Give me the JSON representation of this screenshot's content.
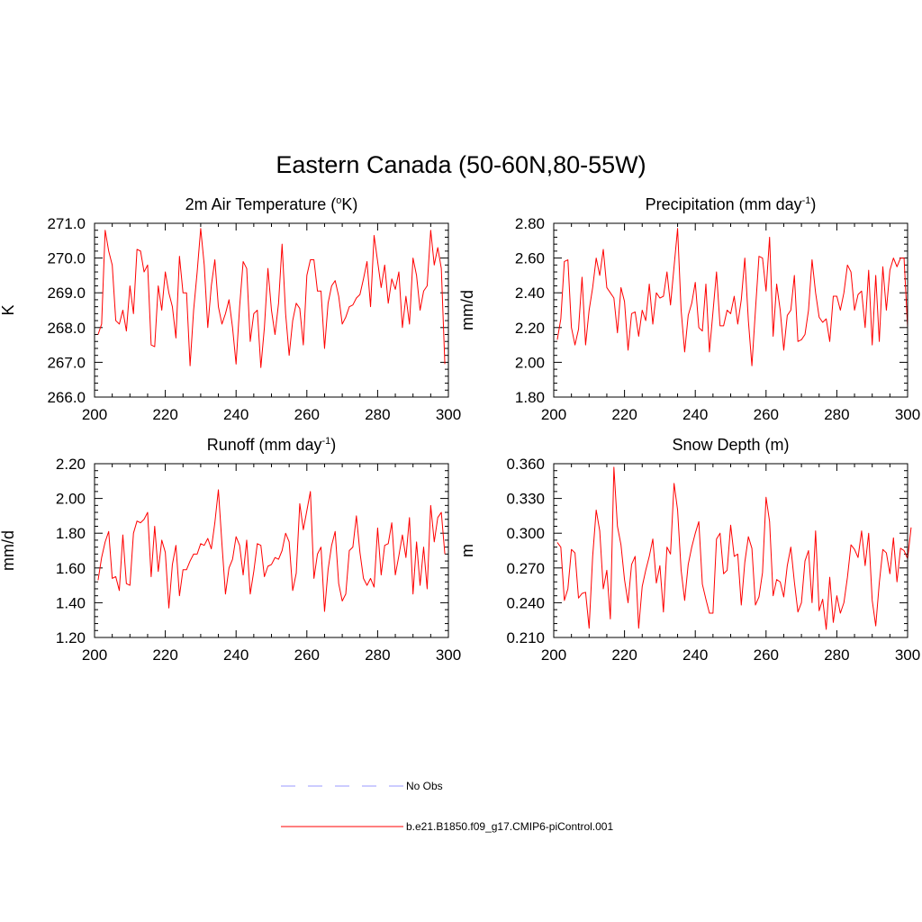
{
  "title": "Eastern Canada (50-60N,80-55W)",
  "legend": {
    "obs_label": "No Obs",
    "obs_color": "#9999ff",
    "model_label": "b.e21.B1850.f09_g17.CMIP6-piControl.001",
    "model_color": "#ff0000"
  },
  "chart_data": [
    {
      "type": "line",
      "title_main": "2m Air Temperature (",
      "title_sup": "o",
      "title_end": "K)",
      "ylabel": "K",
      "xlim": [
        200,
        300
      ],
      "ylim": [
        266.0,
        271.0
      ],
      "xticks": [
        "200",
        "220",
        "240",
        "260",
        "280",
        "300"
      ],
      "yticks": [
        "266.0",
        "267.0",
        "268.0",
        "269.0",
        "270.0",
        "271.0"
      ],
      "x_start": 201,
      "series": [
        {
          "name": "b.e21.B1850.f09_g17.CMIP6-piControl.001",
          "color": "#ff0000",
          "values": [
            267.8,
            268.1,
            270.8,
            270.2,
            269.8,
            268.2,
            268.1,
            268.5,
            267.9,
            269.2,
            268.4,
            270.25,
            270.2,
            269.6,
            269.8,
            267.5,
            267.45,
            269.2,
            268.5,
            269.6,
            269.0,
            268.6,
            267.7,
            270.05,
            269.0,
            269.0,
            266.9,
            268.5,
            269.6,
            270.85,
            269.8,
            268.0,
            269.2,
            269.95,
            268.6,
            268.1,
            268.4,
            268.8,
            268.0,
            266.95,
            268.6,
            269.9,
            269.7,
            267.6,
            268.4,
            268.5,
            266.85,
            268.0,
            269.7,
            268.5,
            267.8,
            268.7,
            270.4,
            268.4,
            267.2,
            268.2,
            268.7,
            268.55,
            267.5,
            269.5,
            269.95,
            269.95,
            269.05,
            269.05,
            267.4,
            268.7,
            269.2,
            269.35,
            268.9,
            268.1,
            268.3,
            268.6,
            268.65,
            268.85,
            268.95,
            269.4,
            269.9,
            268.6,
            270.65,
            269.9,
            269.15,
            269.8,
            268.7,
            269.4,
            269.1,
            269.6,
            268.0,
            268.9,
            268.1,
            270.0,
            269.5,
            268.5,
            269.05,
            269.2,
            270.8,
            269.8,
            270.3,
            269.7,
            266.95
          ]
        }
      ]
    },
    {
      "type": "line",
      "title_main": "Precipitation (mm day",
      "title_sup": "-1",
      "title_end": ")",
      "ylabel": "mm/d",
      "xlim": [
        200,
        300
      ],
      "ylim": [
        1.8,
        2.8
      ],
      "xticks": [
        "200",
        "220",
        "240",
        "260",
        "280",
        "300"
      ],
      "yticks": [
        "1.80",
        "2.00",
        "2.20",
        "2.40",
        "2.60",
        "2.80"
      ],
      "x_start": 201,
      "series": [
        {
          "name": "b.e21.B1850.f09_g17.CMIP6-piControl.001",
          "color": "#ff0000",
          "values": [
            2.13,
            2.25,
            2.58,
            2.59,
            2.2,
            2.1,
            2.19,
            2.49,
            2.1,
            2.3,
            2.43,
            2.6,
            2.5,
            2.65,
            2.43,
            2.4,
            2.37,
            2.17,
            2.43,
            2.35,
            2.07,
            2.28,
            2.29,
            2.15,
            2.3,
            2.24,
            2.45,
            2.22,
            2.4,
            2.37,
            2.38,
            2.52,
            2.33,
            2.55,
            2.77,
            2.3,
            2.06,
            2.27,
            2.34,
            2.46,
            2.2,
            2.18,
            2.45,
            2.06,
            2.29,
            2.52,
            2.21,
            2.21,
            2.3,
            2.28,
            2.38,
            2.22,
            2.36,
            2.6,
            2.24,
            1.98,
            2.3,
            2.61,
            2.6,
            2.41,
            2.72,
            2.15,
            2.45,
            2.3,
            2.07,
            2.27,
            2.3,
            2.5,
            2.12,
            2.13,
            2.16,
            2.3,
            2.59,
            2.4,
            2.26,
            2.23,
            2.25,
            2.12,
            2.38,
            2.38,
            2.3,
            2.4,
            2.56,
            2.52,
            2.3,
            2.39,
            2.41,
            2.2,
            2.53,
            2.1,
            2.5,
            2.12,
            2.55,
            2.3,
            2.53,
            2.6,
            2.55,
            2.6,
            2.6,
            2.2
          ]
        }
      ]
    },
    {
      "type": "line",
      "title_main": "Runoff (mm day",
      "title_sup": "-1",
      "title_end": ")",
      "ylabel": "mm/d",
      "xlim": [
        200,
        300
      ],
      "ylim": [
        1.2,
        2.2
      ],
      "xticks": [
        "200",
        "220",
        "240",
        "260",
        "280",
        "300"
      ],
      "yticks": [
        "1.20",
        "1.40",
        "1.60",
        "1.80",
        "2.00",
        "2.20"
      ],
      "x_start": 201,
      "series": [
        {
          "name": "b.e21.B1850.f09_g17.CMIP6-piControl.001",
          "color": "#ff0000",
          "values": [
            1.53,
            1.66,
            1.75,
            1.81,
            1.54,
            1.55,
            1.47,
            1.79,
            1.51,
            1.5,
            1.8,
            1.87,
            1.86,
            1.88,
            1.92,
            1.55,
            1.84,
            1.58,
            1.76,
            1.69,
            1.37,
            1.62,
            1.73,
            1.44,
            1.59,
            1.59,
            1.64,
            1.68,
            1.68,
            1.74,
            1.73,
            1.77,
            1.71,
            1.86,
            2.05,
            1.74,
            1.45,
            1.6,
            1.65,
            1.78,
            1.73,
            1.56,
            1.76,
            1.45,
            1.58,
            1.74,
            1.73,
            1.55,
            1.61,
            1.62,
            1.66,
            1.65,
            1.7,
            1.8,
            1.75,
            1.47,
            1.57,
            1.97,
            1.82,
            1.93,
            2.04,
            1.54,
            1.68,
            1.72,
            1.35,
            1.59,
            1.73,
            1.81,
            1.51,
            1.41,
            1.45,
            1.7,
            1.72,
            1.9,
            1.69,
            1.54,
            1.5,
            1.54,
            1.49,
            1.83,
            1.56,
            1.73,
            1.74,
            1.86,
            1.56,
            1.67,
            1.79,
            1.66,
            1.89,
            1.45,
            1.75,
            1.5,
            1.72,
            1.48,
            1.96,
            1.75,
            1.89,
            1.92,
            1.68
          ]
        }
      ]
    },
    {
      "type": "line",
      "title_main": "Snow Depth (m)",
      "title_sup": "",
      "title_end": "",
      "ylabel": "m",
      "xlim": [
        200,
        300
      ],
      "ylim": [
        0.21,
        0.36
      ],
      "xticks": [
        "200",
        "220",
        "240",
        "260",
        "280",
        "300"
      ],
      "yticks": [
        "0.210",
        "0.240",
        "0.270",
        "0.300",
        "0.330",
        "0.360"
      ],
      "x_start": 201,
      "series": [
        {
          "name": "b.e21.B1850.f09_g17.CMIP6-piControl.001",
          "color": "#ff0000",
          "values": [
            0.292,
            0.288,
            0.242,
            0.252,
            0.286,
            0.283,
            0.244,
            0.248,
            0.249,
            0.218,
            0.28,
            0.32,
            0.302,
            0.252,
            0.268,
            0.226,
            0.357,
            0.306,
            0.29,
            0.26,
            0.24,
            0.273,
            0.28,
            0.218,
            0.254,
            0.268,
            0.28,
            0.295,
            0.257,
            0.272,
            0.232,
            0.288,
            0.282,
            0.343,
            0.32,
            0.268,
            0.242,
            0.273,
            0.288,
            0.3,
            0.31,
            0.256,
            0.243,
            0.231,
            0.231,
            0.295,
            0.3,
            0.265,
            0.268,
            0.307,
            0.28,
            0.282,
            0.238,
            0.275,
            0.297,
            0.287,
            0.238,
            0.245,
            0.266,
            0.331,
            0.31,
            0.246,
            0.26,
            0.258,
            0.245,
            0.272,
            0.288,
            0.258,
            0.232,
            0.24,
            0.276,
            0.285,
            0.24,
            0.302,
            0.233,
            0.243,
            0.217,
            0.262,
            0.223,
            0.246,
            0.231,
            0.24,
            0.262,
            0.29,
            0.286,
            0.279,
            0.302,
            0.272,
            0.3,
            0.242,
            0.22,
            0.257,
            0.286,
            0.283,
            0.265,
            0.296,
            0.258,
            0.287,
            0.285,
            0.278,
            0.305
          ]
        }
      ]
    }
  ]
}
